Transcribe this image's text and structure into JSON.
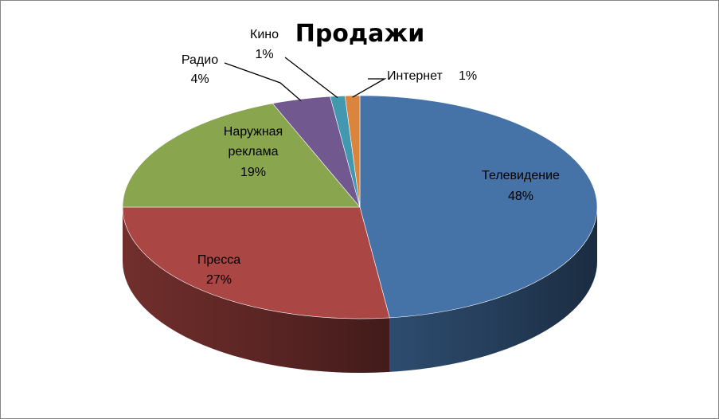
{
  "chart_data": {
    "type": "pie",
    "title": "Продажи",
    "slices": [
      {
        "name": "Телевидение",
        "value": 48,
        "label": "48%",
        "color": "#4572A7"
      },
      {
        "name": "Пресса",
        "value": 27,
        "label": "27%",
        "color": "#AA4643"
      },
      {
        "name": "Наружная реклама",
        "name_lines": [
          "Наружная",
          "реклама"
        ],
        "value": 19,
        "label": "19%",
        "color": "#89A54E"
      },
      {
        "name": "Радио",
        "value": 4,
        "label": "4%",
        "color": "#71588F"
      },
      {
        "name": "Кино",
        "value": 1,
        "label": "1%",
        "color": "#4198AF"
      },
      {
        "name": "Интернет",
        "value": 1,
        "label": "1%",
        "color": "#DB843D"
      }
    ]
  }
}
